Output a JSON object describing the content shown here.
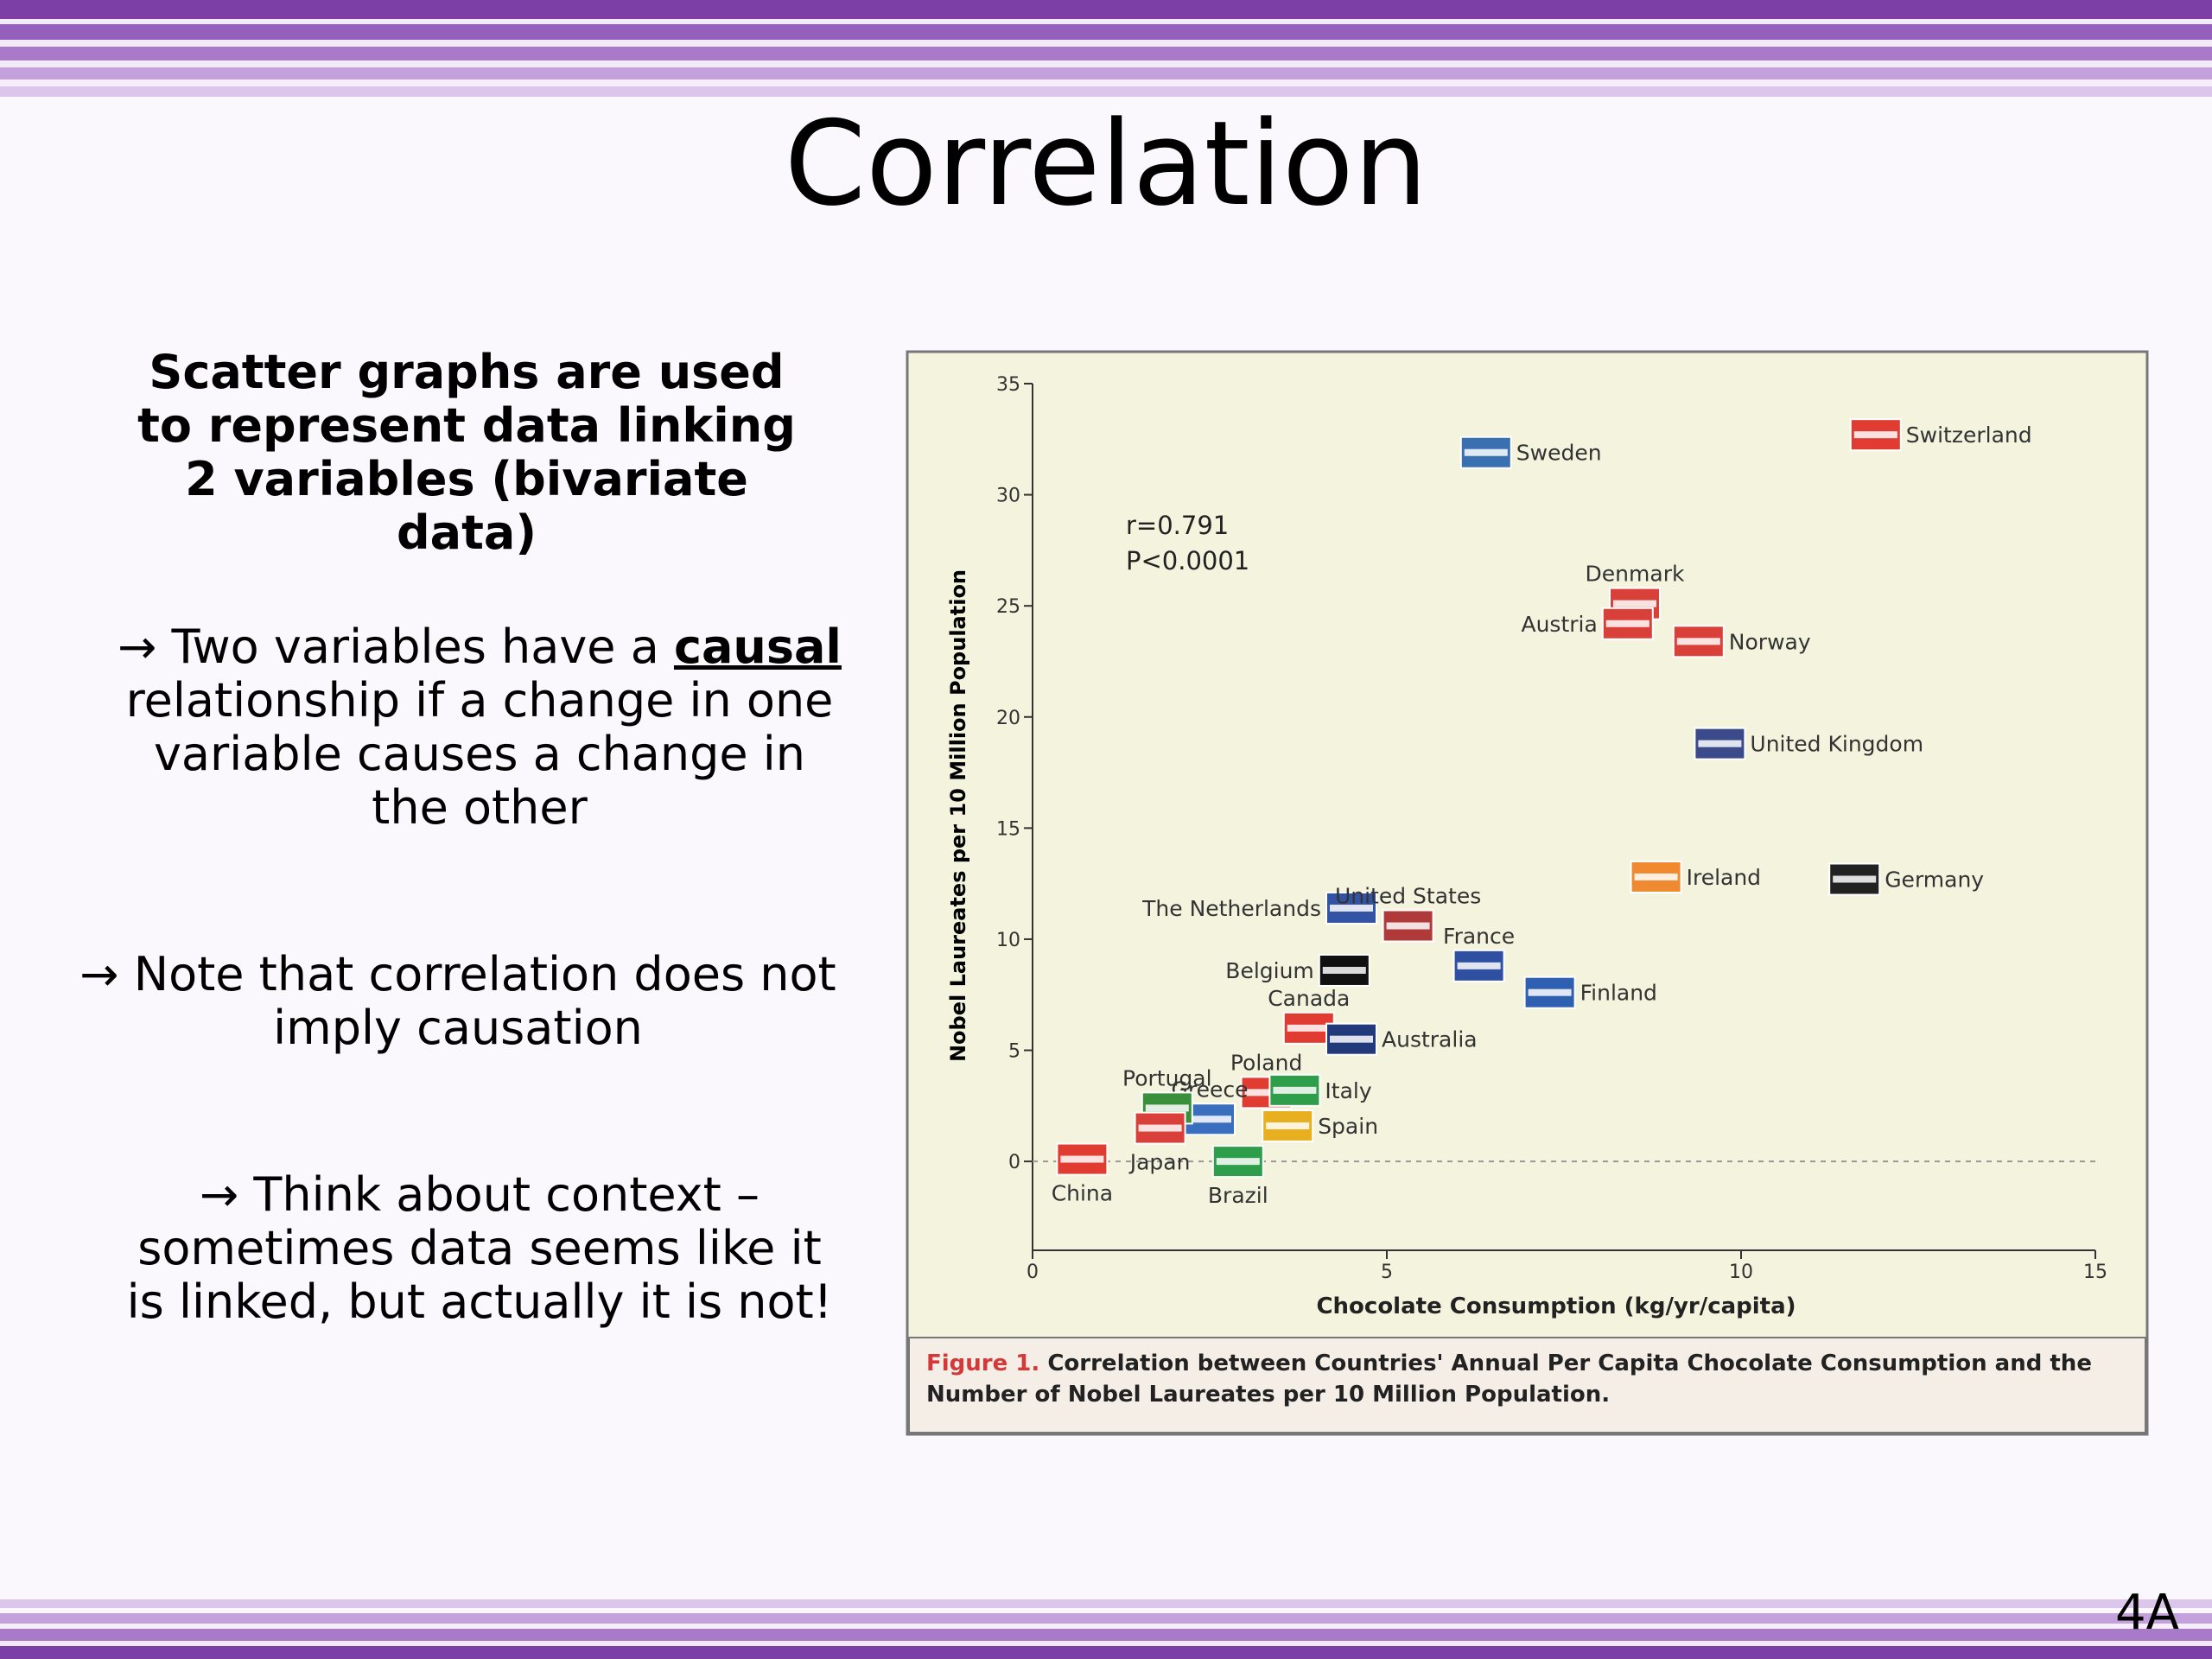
{
  "title": "Correlation",
  "intro": "Scatter graphs are used to represent data linking 2 variables (bivariate data)",
  "causal_note": {
    "before": "→ Two variables have a ",
    "emphasis": "causal",
    "after": " relationship if a change in one variable causes a change in the other"
  },
  "correlation_note": "→ Note that correlation does not imply causation",
  "context_note": "→ Think about context – sometimes data seems like it is linked, but actually it is not!",
  "slide_number": "4A",
  "chart_data": {
    "type": "scatter",
    "x_label": "Chocolate Consumption (kg/yr/capita)",
    "y_label": "Nobel Laureates per 10 Million Population",
    "annotations": [
      "r=0.791",
      "P<0.0001"
    ],
    "caption": {
      "figure": "Figure 1.",
      "text": "Correlation between Countries' Annual Per Capita Chocolate Consumption and the Number of Nobel Laureates per 10 Million Population."
    },
    "xlim": [
      0,
      15
    ],
    "xticks": [
      0,
      5,
      10,
      15
    ],
    "ylim": [
      -4,
      35
    ],
    "yticks": [
      0,
      5,
      10,
      15,
      20,
      25,
      30,
      35
    ],
    "labels": [
      "Sweden",
      "Switzerland",
      "Denmark",
      "Austria",
      "Norway",
      "United Kingdom",
      "Ireland",
      "Germany",
      "The Netherlands",
      "United States",
      "France",
      "Belgium",
      "Finland",
      "Canada",
      "Australia",
      "Poland",
      "Italy",
      "Spain",
      "Greece",
      "Portugal",
      "Japan",
      "Brazil",
      "China"
    ],
    "x": [
      6.4,
      11.9,
      8.5,
      8.4,
      9.4,
      9.7,
      8.8,
      11.6,
      4.5,
      5.3,
      6.3,
      4.4,
      7.3,
      3.9,
      4.5,
      3.3,
      3.7,
      3.6,
      2.5,
      1.9,
      1.8,
      2.9,
      0.7
    ],
    "values": [
      31.9,
      32.7,
      25.1,
      24.2,
      23.4,
      18.8,
      12.8,
      12.7,
      11.4,
      10.6,
      8.8,
      8.6,
      7.6,
      6.0,
      5.5,
      3.1,
      3.2,
      1.6,
      1.9,
      2.4,
      1.5,
      0.0,
      0.1
    ],
    "colors": [
      "#3a6fb0",
      "#e03c31",
      "#d9403a",
      "#d9403a",
      "#d9403a",
      "#3b4b8a",
      "#f08a30",
      "#222222",
      "#3353a3",
      "#b03a3a",
      "#2f4fa0",
      "#111111",
      "#2f5fb0",
      "#e03c31",
      "#233a7a",
      "#e03c31",
      "#2e9e4a",
      "#e8b020",
      "#3a6fc0",
      "#3a8f3a",
      "#d9403a",
      "#2e9e4a",
      "#e03c31"
    ]
  }
}
